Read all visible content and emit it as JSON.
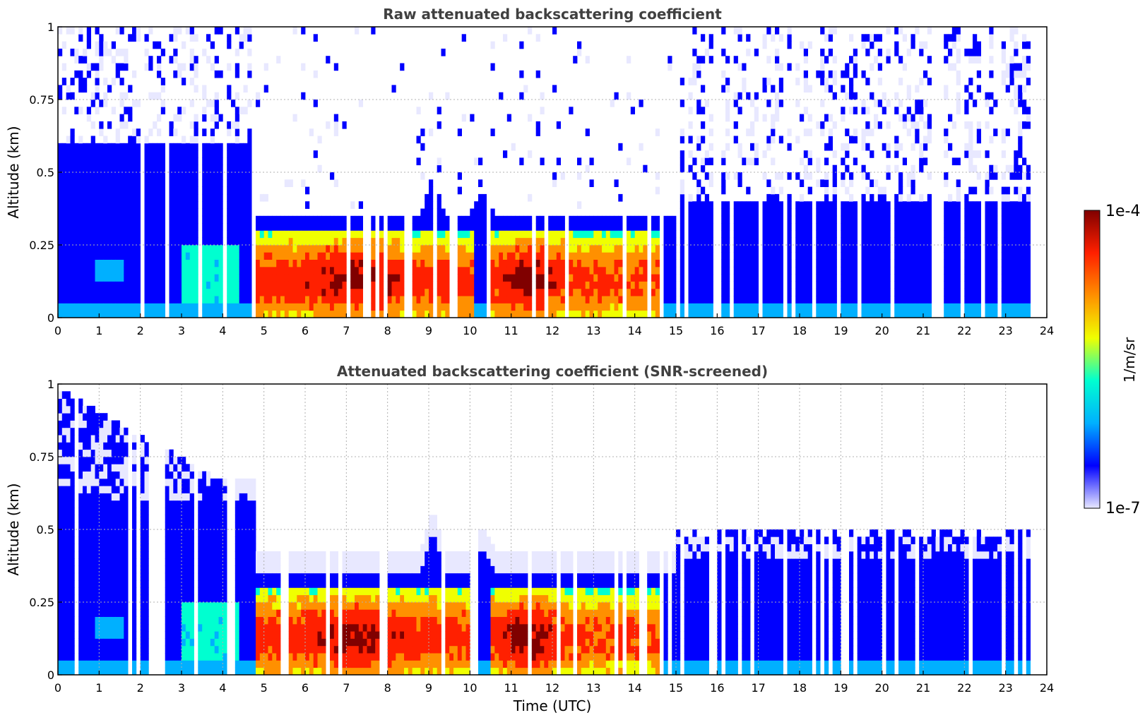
{
  "figure": {
    "colorbar": {
      "label": "1/m/sr",
      "max_label": "1e-4",
      "min_label": "1e-7",
      "scale": "log",
      "range": [
        1e-07,
        0.0001
      ],
      "colormap": [
        "#e8e8ff",
        "#0000ff",
        "#00b0ff",
        "#00ffd0",
        "#f0ff00",
        "#ff9000",
        "#ff2000",
        "#800000"
      ]
    },
    "xlabel": "Time (UTC)"
  },
  "chart_data": [
    {
      "type": "heatmap",
      "title": "Raw attenuated backscattering coefficient",
      "xlabel": "",
      "ylabel": "Altitude (km)",
      "xlim": [
        0,
        24
      ],
      "ylim": [
        0,
        1
      ],
      "x_ticks": [
        "0",
        "1",
        "2",
        "3",
        "4",
        "5",
        "6",
        "7",
        "8",
        "9",
        "10",
        "11",
        "12",
        "13",
        "14",
        "15",
        "16",
        "17",
        "18",
        "19",
        "20",
        "21",
        "22",
        "23",
        "24"
      ],
      "y_ticks": [
        "0",
        "0.25",
        "0.5",
        "0.75",
        "1"
      ],
      "grid": true,
      "data_end_time": 23.6,
      "features": [
        {
          "time": [
            0,
            4.8
          ],
          "layer": "blue, noisy above 0.6 km, thin aerosol streaks near 0.15 km"
        },
        {
          "time": [
            4.8,
            10.2
          ],
          "layer": "strong backscatter 0–0.3 km, peaks near 7 km-time"
        },
        {
          "time": [
            10.2,
            14.8
          ],
          "layer": "strong backscatter 0–0.3 km, peak near 11.5 h"
        },
        {
          "time": [
            14.8,
            23.6
          ],
          "layer": "blue background 0–0.4 km, sparse noise above"
        }
      ]
    },
    {
      "type": "heatmap",
      "title": "Attenuated backscattering coefficient (SNR-screened)",
      "xlabel": "Time (UTC)",
      "ylabel": "Altitude (km)",
      "xlim": [
        0,
        24
      ],
      "ylim": [
        0,
        1
      ],
      "x_ticks": [
        "0",
        "1",
        "2",
        "3",
        "4",
        "5",
        "6",
        "7",
        "8",
        "9",
        "10",
        "11",
        "12",
        "13",
        "14",
        "15",
        "16",
        "17",
        "18",
        "19",
        "20",
        "21",
        "22",
        "23",
        "24"
      ],
      "y_ticks": [
        "0",
        "0.25",
        "0.5",
        "0.75",
        "1"
      ],
      "grid": true,
      "data_end_time": 23.6
    }
  ]
}
